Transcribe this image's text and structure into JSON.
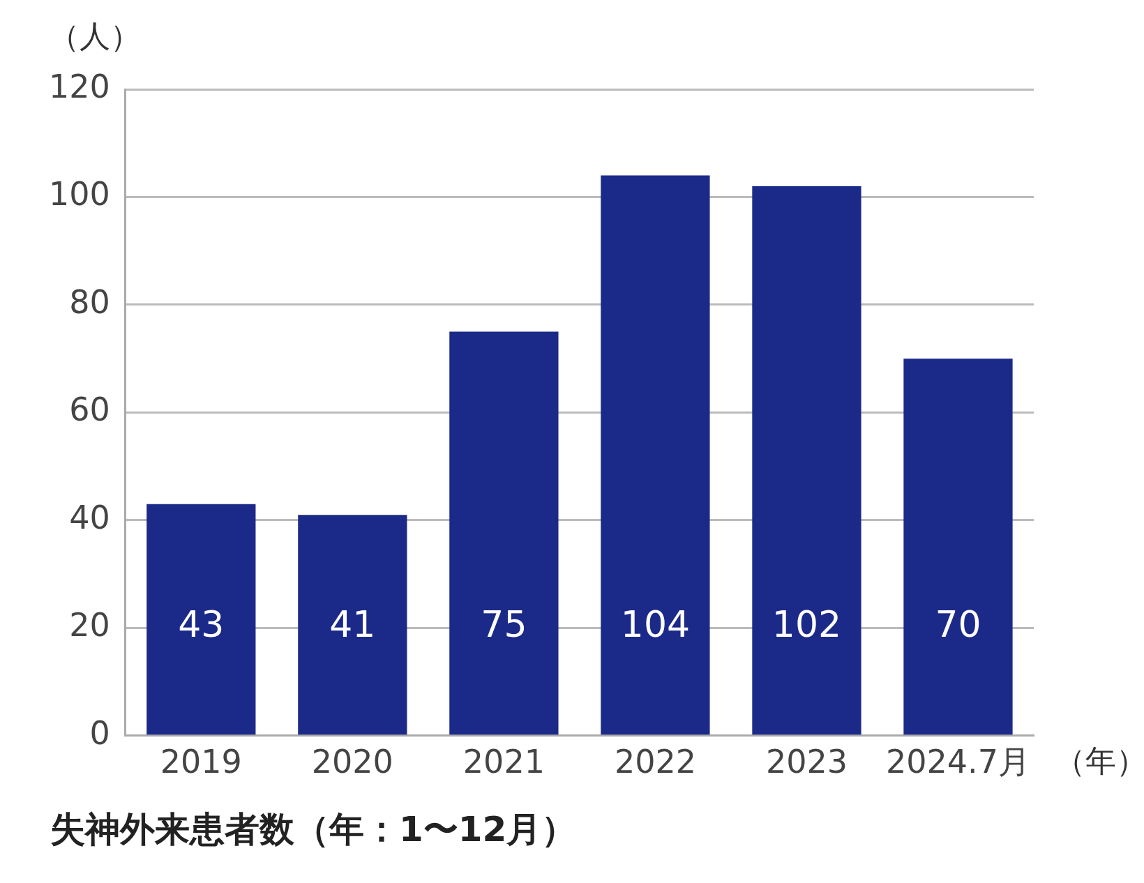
{
  "chart_data": {
    "type": "bar",
    "title": "失神外来患者数（年：1〜12月）",
    "ylabel": "（人）",
    "xlabel": "（年）",
    "categories": [
      "2019",
      "2020",
      "2021",
      "2022",
      "2023",
      "2024.7月"
    ],
    "values": [
      43,
      41,
      75,
      104,
      102,
      70
    ],
    "color": "#1b2a88",
    "ylim": [
      0,
      120
    ],
    "yticks": [
      0,
      20,
      40,
      60,
      80,
      100,
      120
    ],
    "grid": "y",
    "data_labels": true
  }
}
